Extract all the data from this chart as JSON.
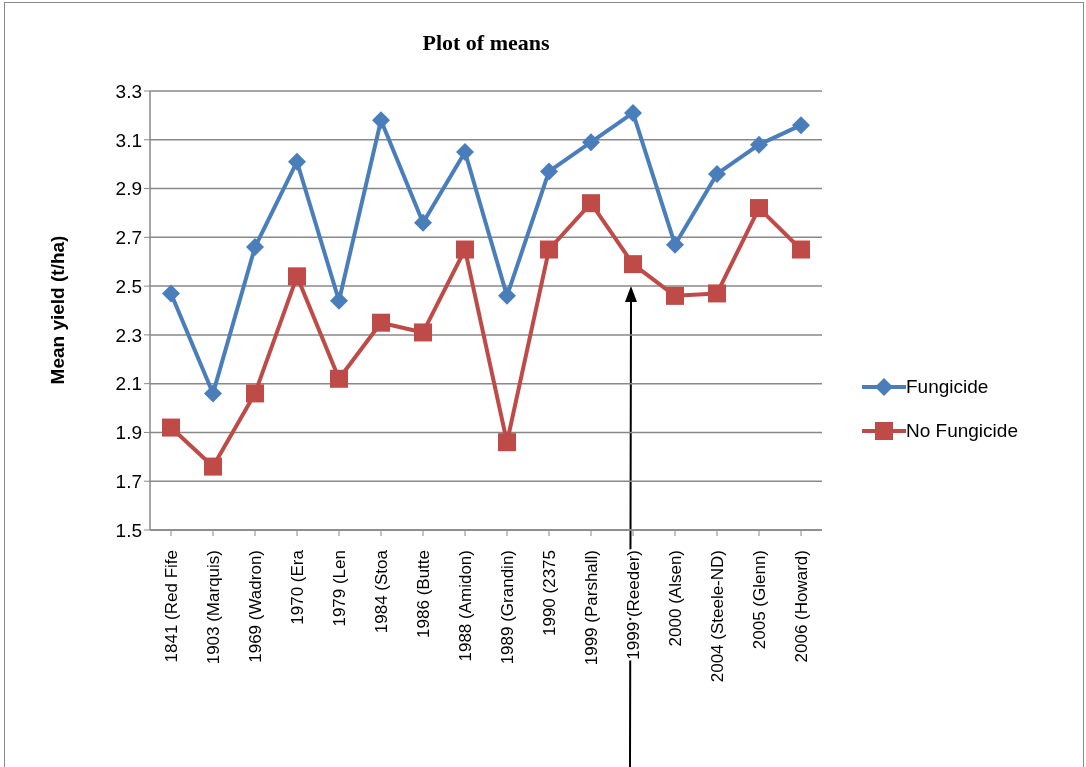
{
  "chart_data": {
    "type": "line",
    "title": "Plot of means",
    "ylabel": "Mean yield (t/ha)",
    "categories": [
      "1841 (Red Fife",
      "1903 (Marquis)",
      "1969 (Wadron)",
      "1970 (Era",
      "1979 (Len",
      "1984 (Stoa",
      "1986 (Butte",
      "1988 (Amidon)",
      "1989 (Grandin)",
      "1990 (2375",
      "1999 (Parshall)",
      "1999 (Reeder)",
      "2000 (Alsen)",
      "2004 (Steele-ND)",
      "2005 (Glenn)",
      "2006 (Howard)"
    ],
    "series": [
      {
        "name": "Fungicide",
        "color": "#4a7ebb",
        "marker": "diamond",
        "values": [
          2.47,
          2.06,
          2.66,
          3.01,
          2.44,
          3.18,
          2.76,
          3.05,
          2.46,
          2.97,
          3.09,
          3.21,
          2.67,
          2.96,
          3.08,
          3.16
        ]
      },
      {
        "name": "No Fungicide",
        "color": "#be4b48",
        "marker": "square",
        "values": [
          1.92,
          1.76,
          2.06,
          2.54,
          2.12,
          2.35,
          2.31,
          2.65,
          1.86,
          2.65,
          2.84,
          2.59,
          2.46,
          2.47,
          2.82,
          2.65
        ]
      }
    ],
    "ylim": [
      1.5,
      3.3
    ],
    "yticks": [
      1.5,
      1.7,
      1.9,
      2.1,
      2.3,
      2.5,
      2.7,
      2.9,
      3.1,
      3.3
    ],
    "grid": "y",
    "legend": "right",
    "line_style": "solid"
  }
}
